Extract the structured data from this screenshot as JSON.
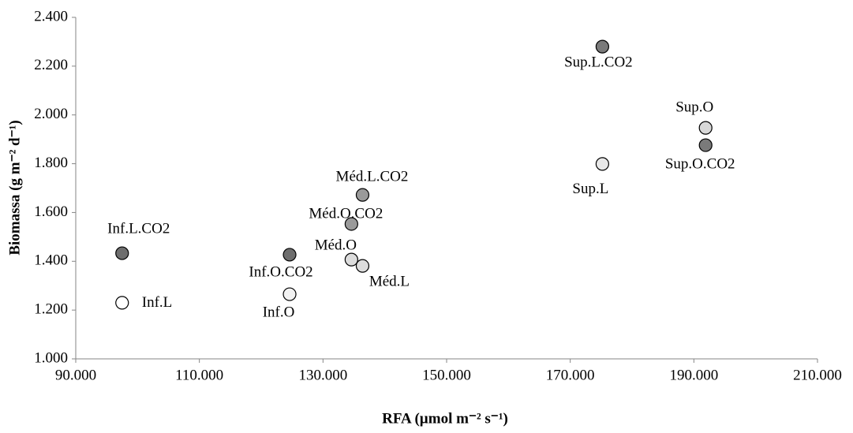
{
  "chart_data": {
    "type": "scatter",
    "x_label": "RFA (µmol m⁻² s⁻¹)",
    "y_label": "Biomassa (g m⁻² d⁻¹)",
    "point_labels": [
      "Inf.L.CO2",
      "Inf.L",
      "Inf.O.CO2",
      "Inf.O",
      "Méd.O.CO2",
      "Méd.O",
      "Méd.L.CO2",
      "Méd.L",
      "Sup.L.CO2",
      "Sup.L",
      "Sup.O",
      "Sup.O.CO2"
    ],
    "x": [
      97.5,
      97.5,
      124.6,
      124.6,
      134.6,
      134.6,
      136.4,
      136.4,
      175.2,
      175.2,
      191.9,
      191.9
    ],
    "values": [
      1.433,
      1.23,
      1.427,
      1.265,
      1.553,
      1.407,
      1.672,
      1.381,
      2.28,
      1.799,
      1.947,
      1.876
    ],
    "colors": [
      "#6e6e6e",
      "#ffffff",
      "#6e6e6e",
      "#f2f2f2",
      "#9a9a9a",
      "#dcdcdc",
      "#9a9a9a",
      "#dcdcdc",
      "#7a7a7a",
      "#e8e8e8",
      "#d8d8d8",
      "#7a7a7a"
    ],
    "xlim": [
      90,
      210
    ],
    "ylim": [
      1.0,
      2.4
    ],
    "xticks": [
      {
        "value": 90,
        "label": "90.000"
      },
      {
        "value": 110,
        "label": "110.000"
      },
      {
        "value": 130,
        "label": "130.000"
      },
      {
        "value": 150,
        "label": "150.000"
      },
      {
        "value": 170,
        "label": "170.000"
      },
      {
        "value": 190,
        "label": "190.000"
      },
      {
        "value": 210,
        "label": "210.000"
      }
    ],
    "yticks": [
      {
        "value": 1.0,
        "label": "1.000"
      },
      {
        "value": 1.2,
        "label": "1.200"
      },
      {
        "value": 1.4,
        "label": "1.400"
      },
      {
        "value": 1.6,
        "label": "1.600"
      },
      {
        "value": 1.8,
        "label": "1.800"
      },
      {
        "value": 2.0,
        "label": "2.000"
      },
      {
        "value": 2.2,
        "label": "2.200"
      },
      {
        "value": 2.4,
        "label": "2.400"
      }
    ]
  }
}
